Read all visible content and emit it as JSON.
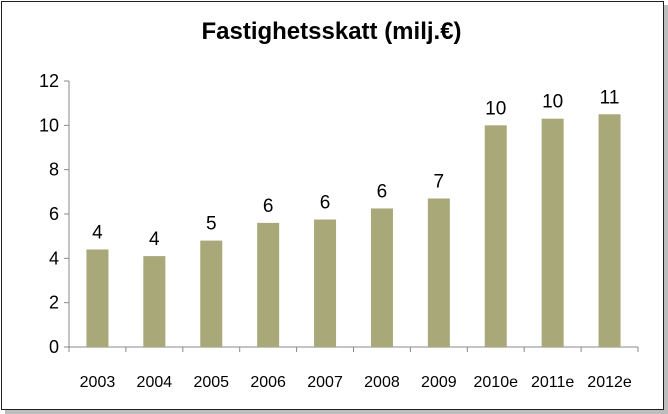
{
  "chart_data": {
    "type": "bar",
    "title": "Fastighetsskatt (milj.€)",
    "categories": [
      "2003",
      "2004",
      "2005",
      "2006",
      "2007",
      "2008",
      "2009",
      "2010e",
      "2011e",
      "2012e"
    ],
    "values": [
      4.4,
      4.1,
      4.8,
      5.6,
      5.75,
      6.25,
      6.7,
      10.0,
      10.3,
      10.5
    ],
    "data_labels": [
      "4",
      "4",
      "5",
      "6",
      "6",
      "6",
      "7",
      "10",
      "10",
      "11"
    ],
    "ylim": [
      0,
      12
    ],
    "yticks": [
      "0",
      "2",
      "4",
      "6",
      "8",
      "10",
      "12"
    ],
    "xlabel": "",
    "ylabel": "",
    "grid": false,
    "legend": "none",
    "bar_color": "#a8a878"
  }
}
